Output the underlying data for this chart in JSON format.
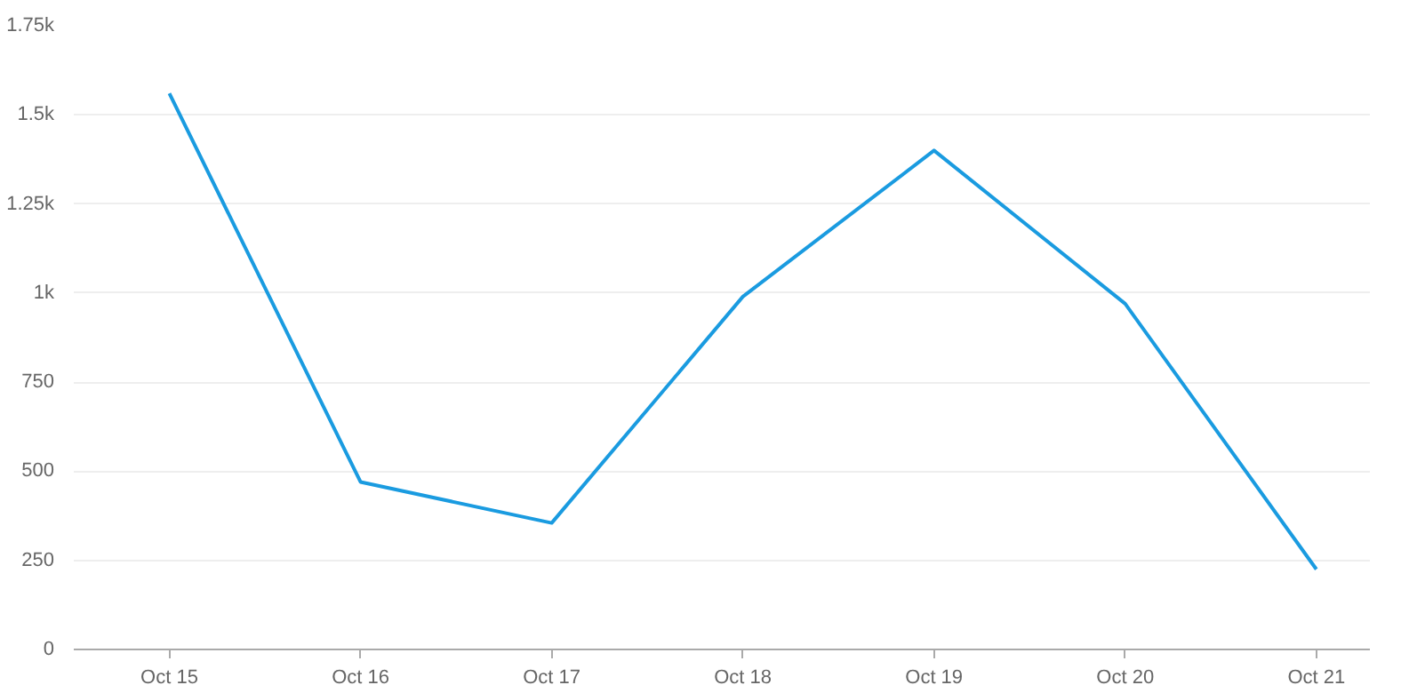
{
  "chart_data": {
    "type": "line",
    "categories": [
      "Oct 15",
      "Oct 16",
      "Oct 17",
      "Oct 18",
      "Oct 19",
      "Oct 20",
      "Oct 21"
    ],
    "series": [
      {
        "color": "#1a9be0",
        "values": [
          1560,
          470,
          355,
          990,
          1400,
          970,
          225
        ]
      }
    ],
    "ylim": [
      0,
      1750
    ],
    "yticks": [
      0,
      250,
      500,
      750,
      {
        "value": 1000,
        "label": "1k"
      },
      {
        "value": 1250,
        "label": "1.25k"
      },
      {
        "value": 1500,
        "label": "1.5k"
      },
      {
        "value": 1750,
        "label": "1.75k"
      }
    ],
    "grid": "y",
    "marker": "none",
    "line_style": "solid"
  }
}
